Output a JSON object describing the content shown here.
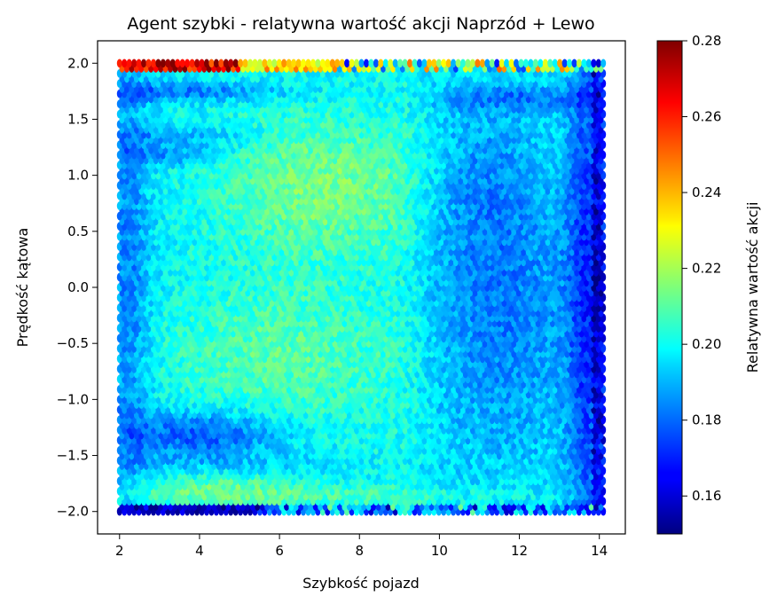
{
  "chart_data": {
    "type": "heatmap",
    "subtype": "hexbin",
    "title": "Agent szybki - relatywna wartość akcji Naprzód + Lewo",
    "xlabel": "Szybkość pojazd",
    "ylabel": "Prędkość kątowa",
    "xlim": [
      1.45,
      14.65
    ],
    "ylim": [
      -2.2,
      2.2
    ],
    "xticks": [
      2,
      4,
      6,
      8,
      10,
      12,
      14
    ],
    "yticks": [
      -2.0,
      -1.5,
      -1.0,
      -0.5,
      0.0,
      0.5,
      1.0,
      1.5,
      2.0
    ],
    "ytick_labels": [
      "−2.0",
      "−1.5",
      "−1.0",
      "−0.5",
      "0.0",
      "0.5",
      "1.0",
      "1.5",
      "2.0"
    ],
    "data_extent": {
      "x": [
        2.0,
        14.1
      ],
      "y": [
        -2.0,
        2.0
      ]
    },
    "colormap": "jet",
    "colorbar": {
      "label": "Relatywna wartość akcji",
      "range": [
        0.15,
        0.28
      ],
      "ticks": [
        0.16,
        0.18,
        0.2,
        0.22,
        0.24,
        0.26,
        0.28
      ],
      "tick_labels": [
        "0.16",
        "0.18",
        "0.20",
        "0.22",
        "0.24",
        "0.26",
        "0.28"
      ]
    },
    "approximate_field": {
      "note_values": "relative action value per (speed, angular velocity) bin, estimated",
      "baseline": 0.2,
      "features": [
        {
          "region": "x 2.5-5, y ≈ 1.98",
          "value": 0.275
        },
        {
          "region": "x 5-7.5, y ≈ 1.98",
          "value": 0.235
        },
        {
          "region": "x 2.5-5.5, y ≈ -1.98",
          "value": 0.155
        },
        {
          "region": "x 3-6, y -1.3",
          "value": 0.175
        },
        {
          "region": "x 6-8.5, y 0.9",
          "value": 0.215
        },
        {
          "region": "x 5-8, y -0.6",
          "value": 0.21
        },
        {
          "region": "x 2-2.8, y -2..2",
          "value": 0.18
        },
        {
          "region": "x 10-13, y -0.2",
          "value": 0.18
        },
        {
          "region": "x 13.3-14.1, y -2..2",
          "value": 0.172
        },
        {
          "region": "x 2-7, y 1.75",
          "value": 0.18
        },
        {
          "region": "x 2-14, y -1.85",
          "value": 0.205
        }
      ]
    }
  }
}
